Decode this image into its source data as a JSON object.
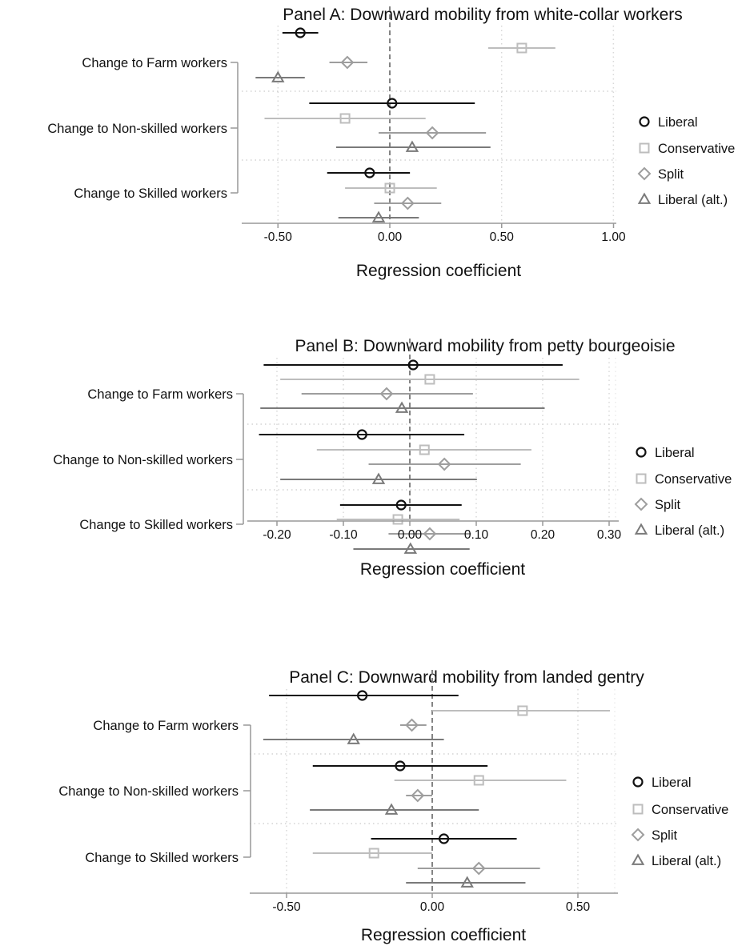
{
  "chart_data": [
    {
      "type": "scatter",
      "subtype": "coefficient-plot",
      "title": "Panel A: Downward mobility from white-collar workers",
      "xlabel": "Regression coefficient",
      "xlim": [
        -0.6,
        1.0
      ],
      "xticks": [
        -0.5,
        0,
        0.5,
        1.0
      ],
      "xtick_labels": [
        "-0.50",
        "0.00",
        "0.50",
        "1.00"
      ],
      "reference_line": 0,
      "categories": [
        "Change to Farm workers",
        "Change to Non-skilled workers",
        "Change to Skilled workers"
      ],
      "series": [
        {
          "name": "Liberal",
          "marker": "circle",
          "color": "#111111",
          "values": [
            [
              -0.4,
              -0.48,
              -0.32
            ],
            [
              0.01,
              -0.36,
              0.38
            ],
            [
              -0.09,
              -0.28,
              0.09
            ]
          ]
        },
        {
          "name": "Conservative",
          "marker": "square",
          "color": "#bdbdbd",
          "values": [
            [
              0.59,
              0.44,
              0.74
            ],
            [
              -0.2,
              -0.56,
              0.16
            ],
            [
              0.0,
              -0.2,
              0.21
            ]
          ]
        },
        {
          "name": "Split",
          "marker": "diamond",
          "color": "#9e9e9e",
          "values": [
            [
              -0.19,
              -0.27,
              -0.1
            ],
            [
              0.19,
              -0.05,
              0.43
            ],
            [
              0.08,
              -0.07,
              0.23
            ]
          ]
        },
        {
          "name": "Liberal (alt.)",
          "marker": "triangle",
          "color": "#7a7a7a",
          "values": [
            [
              -0.5,
              -0.6,
              -0.38
            ],
            [
              0.1,
              -0.24,
              0.45
            ],
            [
              -0.05,
              -0.23,
              0.13
            ]
          ]
        }
      ],
      "grid": "dotted",
      "legend": "right"
    },
    {
      "type": "scatter",
      "subtype": "coefficient-plot",
      "title": "Panel B: Downward mobility from petty bourgeoisie",
      "xlabel": "Regression coefficient",
      "xlim": [
        -0.235,
        0.3
      ],
      "xticks": [
        -0.2,
        -0.1,
        0,
        0.1,
        0.2,
        0.3
      ],
      "xtick_labels": [
        "-0.20",
        "-0.10",
        "0.00",
        "0.10",
        "0.20",
        "0.30"
      ],
      "reference_line": 0,
      "categories": [
        "Change to Farm workers",
        "Change to Non-skilled workers",
        "Change to Skilled workers"
      ],
      "series": [
        {
          "name": "Liberal",
          "marker": "circle",
          "color": "#111111",
          "values": [
            [
              0.005,
              -0.22,
              0.23
            ],
            [
              -0.072,
              -0.227,
              0.082
            ],
            [
              -0.013,
              -0.105,
              0.078
            ]
          ]
        },
        {
          "name": "Conservative",
          "marker": "square",
          "color": "#bdbdbd",
          "values": [
            [
              0.03,
              -0.195,
              0.255
            ],
            [
              0.022,
              -0.14,
              0.183
            ],
            [
              -0.018,
              -0.11,
              0.075
            ]
          ]
        },
        {
          "name": "Split",
          "marker": "diamond",
          "color": "#9e9e9e",
          "values": [
            [
              -0.035,
              -0.163,
              0.095
            ],
            [
              0.052,
              -0.062,
              0.167
            ],
            [
              0.03,
              -0.032,
              0.092
            ]
          ]
        },
        {
          "name": "Liberal (alt.)",
          "marker": "triangle",
          "color": "#7a7a7a",
          "values": [
            [
              -0.012,
              -0.225,
              0.203
            ],
            [
              -0.047,
              -0.195,
              0.101
            ],
            [
              0.001,
              -0.085,
              0.09
            ]
          ]
        }
      ],
      "grid": "dotted",
      "legend": "right"
    },
    {
      "type": "scatter",
      "subtype": "coefficient-plot",
      "title": "Panel C: Downward mobility from landed gentry",
      "xlabel": "Regression coefficient",
      "xlim": [
        -0.6,
        0.65
      ],
      "xticks": [
        -0.5,
        0,
        0.5
      ],
      "xtick_labels": [
        "-0.50",
        "0.00",
        "0.50"
      ],
      "reference_line": 0,
      "categories": [
        "Change to Farm workers",
        "Change to Non-skilled workers",
        "Change to Skilled workers"
      ],
      "series": [
        {
          "name": "Liberal",
          "marker": "circle",
          "color": "#111111",
          "values": [
            [
              -0.24,
              -0.56,
              0.09
            ],
            [
              -0.11,
              -0.41,
              0.19
            ],
            [
              0.04,
              -0.21,
              0.29
            ]
          ]
        },
        {
          "name": "Conservative",
          "marker": "square",
          "color": "#bdbdbd",
          "values": [
            [
              0.31,
              0.0,
              0.61
            ],
            [
              0.16,
              -0.13,
              0.46
            ],
            [
              -0.2,
              -0.41,
              0.0
            ]
          ]
        },
        {
          "name": "Split",
          "marker": "diamond",
          "color": "#9e9e9e",
          "values": [
            [
              -0.07,
              -0.11,
              -0.02
            ],
            [
              -0.05,
              -0.09,
              0.0
            ],
            [
              0.16,
              -0.05,
              0.37
            ]
          ]
        },
        {
          "name": "Liberal (alt.)",
          "marker": "triangle",
          "color": "#7a7a7a",
          "values": [
            [
              -0.27,
              -0.58,
              0.04
            ],
            [
              -0.14,
              -0.42,
              0.16
            ],
            [
              0.12,
              -0.09,
              0.32
            ]
          ]
        }
      ],
      "grid": "dotted",
      "legend": "right"
    }
  ]
}
